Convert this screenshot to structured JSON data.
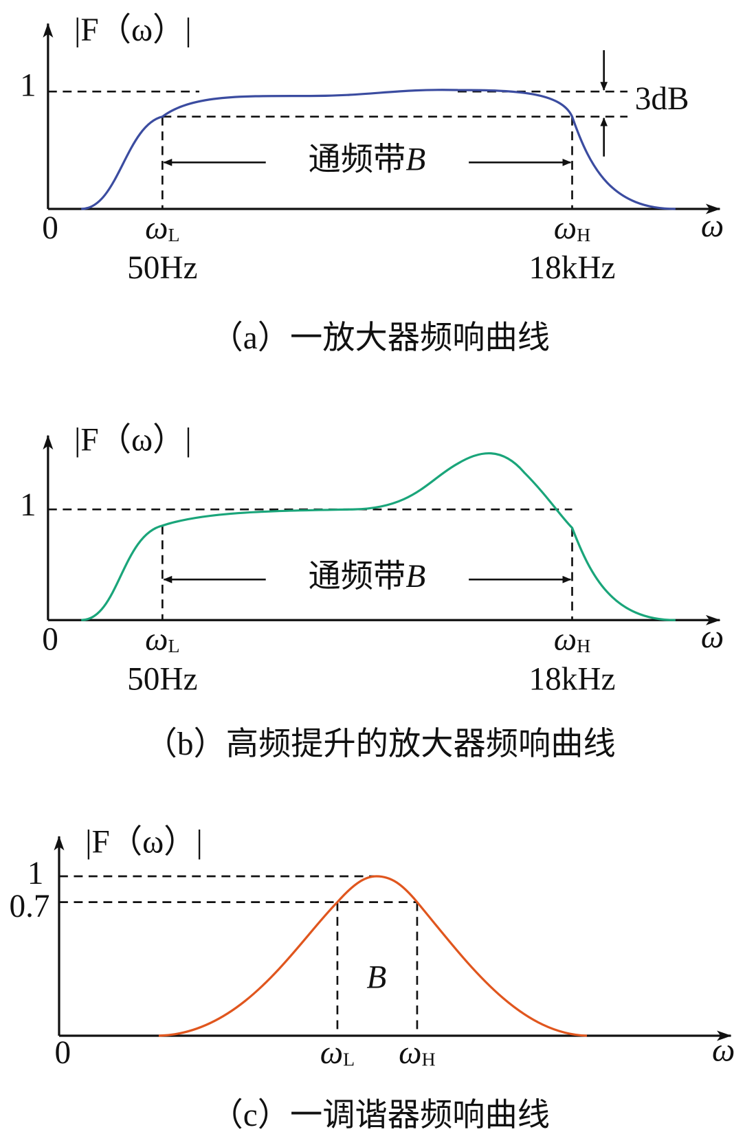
{
  "panels": [
    {
      "y_axis_label": "|F（ω）|",
      "y_tick": "1",
      "origin": "0",
      "x_axis_label": "ω",
      "omega_L": {
        "symbol": "ω",
        "sub": "L"
      },
      "omega_H": {
        "symbol": "ω",
        "sub": "H"
      },
      "freq_L": "50Hz",
      "freq_H": "18kHz",
      "attenuation": "3dB",
      "band_label": {
        "text": "通频带",
        "symbol": "B"
      },
      "caption": "（a）一放大器频响曲线"
    },
    {
      "y_axis_label": "|F（ω）|",
      "y_tick": "1",
      "origin": "0",
      "x_axis_label": "ω",
      "omega_L": {
        "symbol": "ω",
        "sub": "L"
      },
      "omega_H": {
        "symbol": "ω",
        "sub": "H"
      },
      "freq_L": "50Hz",
      "freq_H": "18kHz",
      "band_label": {
        "text": "通频带",
        "symbol": "B"
      },
      "caption": "（b）高频提升的放大器频响曲线"
    },
    {
      "y_axis_label": "|F（ω）|",
      "y_ticks": [
        "1",
        "0.7"
      ],
      "origin": "0",
      "x_axis_label": "ω",
      "omega_L": {
        "symbol": "ω",
        "sub": "L"
      },
      "omega_H": {
        "symbol": "ω",
        "sub": "H"
      },
      "band_label": "B",
      "caption": "（c）一调谐器频响曲线"
    }
  ]
}
